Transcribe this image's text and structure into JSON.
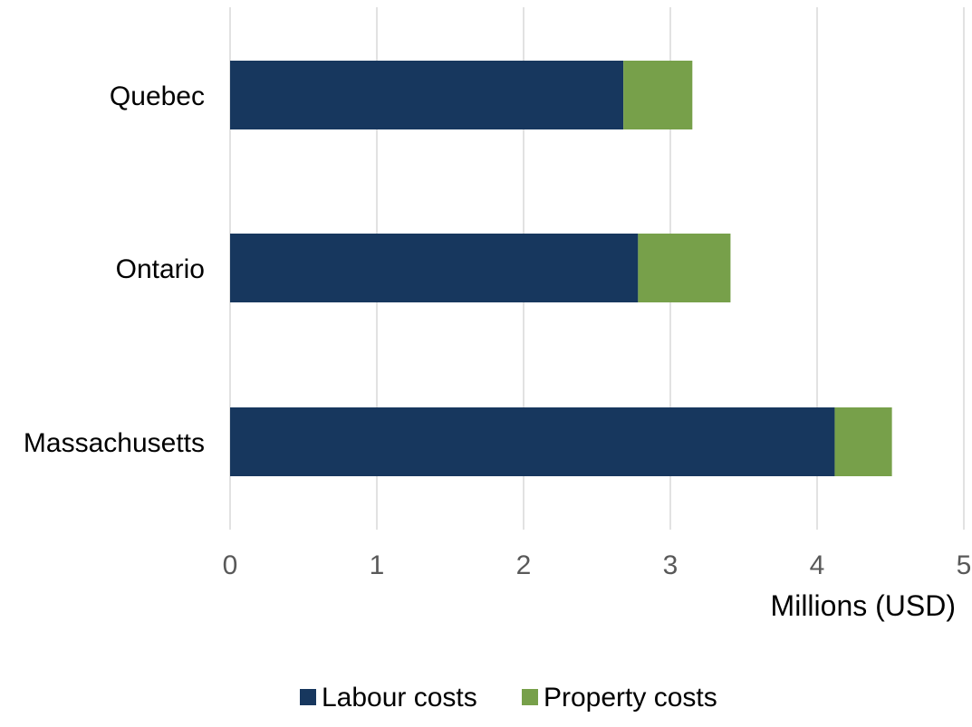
{
  "chart_data": {
    "type": "bar",
    "orientation": "horizontal",
    "stacked": true,
    "categories": [
      "Quebec",
      "Ontario",
      "Massachusetts"
    ],
    "series": [
      {
        "name": "Labour costs",
        "values": [
          2.68,
          2.78,
          4.12
        ],
        "color": "#17375e"
      },
      {
        "name": "Property costs",
        "values": [
          0.47,
          0.63,
          0.39
        ],
        "color": "#77a04a"
      }
    ],
    "xlabel": "Millions (USD)",
    "ylabel": "",
    "xlim": [
      0,
      5
    ],
    "xticks": [
      "0",
      "1",
      "2",
      "3",
      "4",
      "5"
    ],
    "grid": "vertical",
    "legend": "bottom-center",
    "colors": {
      "grid": "#d9d9d9",
      "tick_label": "#595959",
      "category_label": "#000000"
    }
  }
}
